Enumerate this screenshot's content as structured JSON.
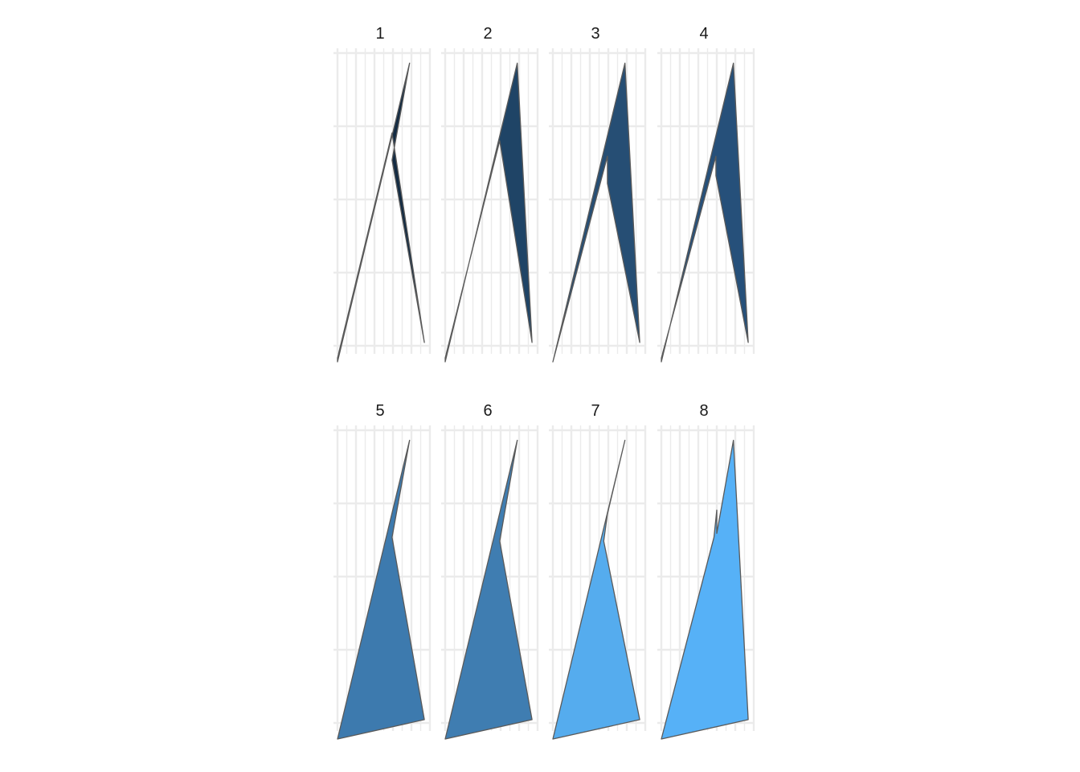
{
  "chart_data": {
    "type": "area",
    "facet_layout": {
      "rows": 2,
      "cols": 4
    },
    "xlim": [
      0,
      5
    ],
    "ylim": [
      0,
      4
    ],
    "x_breaks": [
      0,
      1,
      2,
      3,
      4,
      5
    ],
    "y_breaks": [
      0.2,
      1.2,
      2.2,
      3.2,
      4.2
    ],
    "grid": true,
    "tick_labels_visible": false,
    "facets": [
      {
        "label": "1",
        "fill": "#132b43",
        "polygon": [
          [
            0,
            0
          ],
          [
            3.9,
            3.85
          ],
          [
            2.95,
            2.6
          ],
          [
            4.7,
            0.25
          ],
          [
            2.95,
            2.95
          ],
          [
            0,
            0.05
          ]
        ]
      },
      {
        "label": "2",
        "fill": "#1f4466",
        "polygon": [
          [
            0,
            0
          ],
          [
            3.9,
            3.85
          ],
          [
            4.7,
            0.25
          ],
          [
            2.95,
            2.85
          ],
          [
            0,
            0.05
          ]
        ]
      },
      {
        "label": "3",
        "fill": "#264e74",
        "polygon": [
          [
            0,
            0
          ],
          [
            3.9,
            3.85
          ],
          [
            4.7,
            0.25
          ],
          [
            2.95,
            2.3
          ],
          [
            2.95,
            2.65
          ]
        ]
      },
      {
        "label": "4",
        "fill": "#26507a",
        "polygon": [
          [
            0,
            0
          ],
          [
            3.9,
            3.85
          ],
          [
            4.7,
            0.25
          ],
          [
            2.95,
            2.4
          ],
          [
            2.95,
            2.65
          ],
          [
            0,
            0.05
          ]
        ]
      },
      {
        "label": "5",
        "fill": "#3d7aae",
        "polygon": [
          [
            0,
            0
          ],
          [
            3.9,
            3.85
          ],
          [
            2.95,
            2.6
          ],
          [
            4.7,
            0.25
          ]
        ]
      },
      {
        "label": "6",
        "fill": "#3f7db1",
        "polygon": [
          [
            0,
            0
          ],
          [
            3.9,
            3.85
          ],
          [
            2.95,
            2.55
          ],
          [
            4.7,
            0.25
          ]
        ]
      },
      {
        "label": "7",
        "fill": "#55acee",
        "polygon": [
          [
            0,
            0
          ],
          [
            3.9,
            3.85
          ],
          [
            2.95,
            2.9
          ],
          [
            2.75,
            2.55
          ],
          [
            4.7,
            0.25
          ]
        ]
      },
      {
        "label": "8",
        "fill": "#56b1f7",
        "polygon": [
          [
            0,
            0
          ],
          [
            2.85,
            2.6
          ],
          [
            3.0,
            2.95
          ],
          [
            3.0,
            2.65
          ],
          [
            3.9,
            3.85
          ],
          [
            4.7,
            0.25
          ]
        ]
      }
    ]
  }
}
